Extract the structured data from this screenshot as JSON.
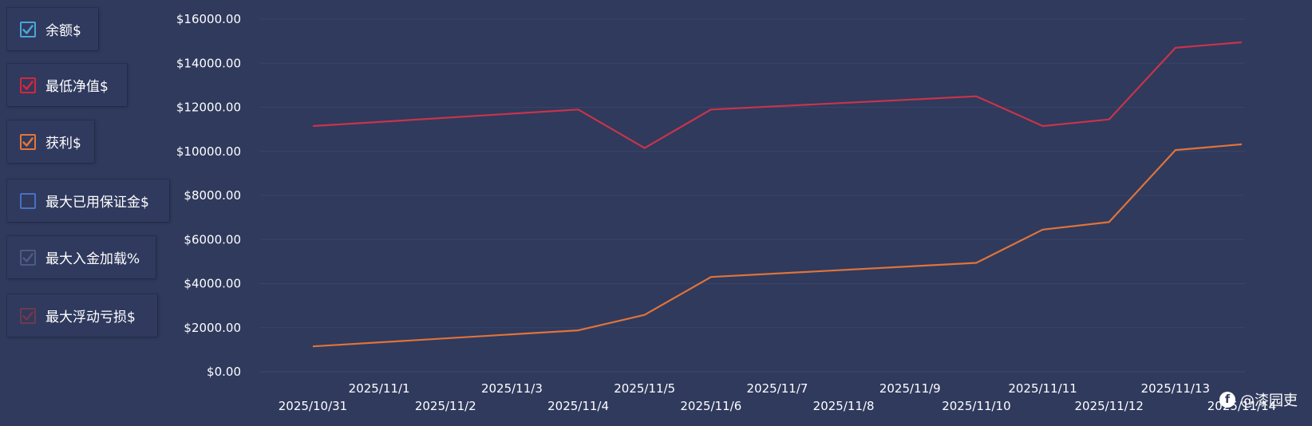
{
  "legend": {
    "items": [
      {
        "label": "余额$",
        "color": "#4aa6d6",
        "checked": true
      },
      {
        "label": "最低净值$",
        "color": "#d6263c",
        "checked": true
      },
      {
        "label": "获利$",
        "color": "#e4763a",
        "checked": true
      },
      {
        "label": "最大已用保证金$",
        "color": "#4a70c0",
        "checked": false
      },
      {
        "label": "最大入金加载%",
        "color": "#4f5a82",
        "checked": true
      },
      {
        "label": "最大浮动亏损$",
        "color": "#6e3a4c",
        "checked": true
      }
    ]
  },
  "watermark": {
    "icon": "fb-logo-icon",
    "text": "@漆园吏"
  },
  "chart_data": {
    "type": "line",
    "x": [
      "2025/10/31",
      "2025/11/1",
      "2025/11/2",
      "2025/11/3",
      "2025/11/4",
      "2025/11/5",
      "2025/11/6",
      "2025/11/7",
      "2025/11/8",
      "2025/11/9",
      "2025/11/10",
      "2025/11/11",
      "2025/11/12",
      "2025/11/13",
      "2025/11/14"
    ],
    "y_ticks": [
      "$0.00",
      "$2000.00",
      "$4000.00",
      "$6000.00",
      "$8000.00",
      "$10000.00",
      "$12000.00",
      "$14000.00",
      "$16000.00"
    ],
    "ylim": [
      0,
      16000
    ],
    "grid": true,
    "series": [
      {
        "name": "最低净值$",
        "color": "#c8344a",
        "points": [
          {
            "x": "2025/10/31",
            "y": 11150
          },
          {
            "x": "2025/11/4",
            "y": 11900
          },
          {
            "x": "2025/11/5",
            "y": 10150
          },
          {
            "x": "2025/11/6",
            "y": 11900
          },
          {
            "x": "2025/11/10",
            "y": 12500
          },
          {
            "x": "2025/11/11",
            "y": 11150
          },
          {
            "x": "2025/11/12",
            "y": 11450
          },
          {
            "x": "2025/11/13",
            "y": 14700
          },
          {
            "x": "2025/11/14",
            "y": 14950
          }
        ]
      },
      {
        "name": "获利$",
        "color": "#e0733a",
        "points": [
          {
            "x": "2025/10/31",
            "y": 1150
          },
          {
            "x": "2025/11/4",
            "y": 1880
          },
          {
            "x": "2025/11/5",
            "y": 2580
          },
          {
            "x": "2025/11/6",
            "y": 4300
          },
          {
            "x": "2025/11/10",
            "y": 4940
          },
          {
            "x": "2025/11/11",
            "y": 6450
          },
          {
            "x": "2025/11/12",
            "y": 6790
          },
          {
            "x": "2025/11/13",
            "y": 10060
          },
          {
            "x": "2025/11/14",
            "y": 10320
          }
        ]
      }
    ]
  }
}
